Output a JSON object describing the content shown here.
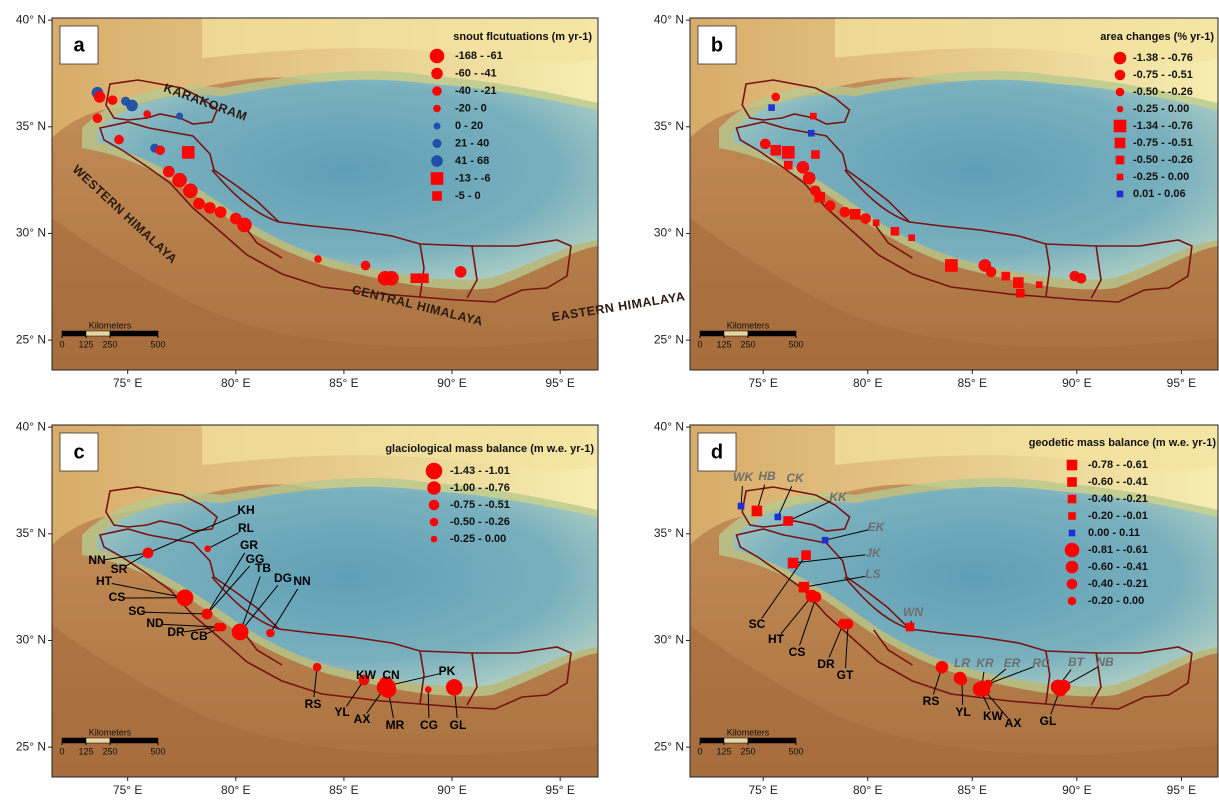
{
  "axes": {
    "xlim": [
      71.5,
      96.75
    ],
    "ylim": [
      23.6,
      40.1
    ],
    "xticks": [
      {
        "value": 75,
        "label": "75° E"
      },
      {
        "value": 80,
        "label": "80° E"
      },
      {
        "value": 85,
        "label": "85° E"
      },
      {
        "value": 90,
        "label": "90° E"
      },
      {
        "value": 95,
        "label": "95° E"
      }
    ],
    "yticks": [
      {
        "value": 25,
        "label": "25° N"
      },
      {
        "value": 30,
        "label": "30° N"
      },
      {
        "value": 35,
        "label": "35° N"
      },
      {
        "value": 40,
        "label": "40° N"
      }
    ]
  },
  "scale_bar": {
    "title": "Kilometers",
    "ticks": [
      0,
      125,
      250,
      500
    ]
  },
  "panels": [
    {
      "letter": "a",
      "legend_title": "snout flcutuations  (m yr-1)",
      "legend": [
        {
          "label": "-168 - -61",
          "shape": "circle",
          "color": "#ff0000"
        },
        {
          "label": "-60 - -41",
          "shape": "circle",
          "color": "#ff0000"
        },
        {
          "label": "-40 - -21",
          "shape": "circle",
          "color": "#ff0000"
        },
        {
          "label": "-20 - 0",
          "shape": "circle",
          "color": "#ff0000"
        },
        {
          "label": "0 - 20",
          "shape": "circle",
          "color": "#1f4fa8"
        },
        {
          "label": "21 - 40",
          "shape": "circle",
          "color": "#1f4fa8"
        },
        {
          "label": "41 - 68",
          "shape": "circle",
          "color": "#1f4fa8"
        },
        {
          "label": "-13 - -6",
          "shape": "square",
          "color": "#ff0000"
        },
        {
          "label": "-5 - 0",
          "shape": "square",
          "color": "#ff0000"
        }
      ],
      "region_labels": [
        "KARAKORAM",
        "WESTERN HIMALAYA",
        "CENTRAL HIMALAYA",
        "EASTERN HIMALAYA"
      ],
      "points": [
        [
          73.6,
          36.6,
          6
        ],
        [
          73.7,
          36.4,
          1
        ],
        [
          74.3,
          36.25,
          2
        ],
        [
          74.9,
          36.2,
          5
        ],
        [
          75.2,
          36.0,
          6
        ],
        [
          75.9,
          35.6,
          3
        ],
        [
          77.4,
          35.5,
          4
        ],
        [
          73.6,
          35.4,
          2
        ],
        [
          74.6,
          34.4,
          2
        ],
        [
          76.25,
          34.0,
          5
        ],
        [
          76.5,
          33.9,
          2
        ],
        [
          77.8,
          33.8,
          7
        ],
        [
          76.9,
          32.9,
          1
        ],
        [
          77.4,
          32.5,
          0
        ],
        [
          77.9,
          32.0,
          0
        ],
        [
          78.3,
          31.4,
          1
        ],
        [
          78.8,
          31.2,
          1
        ],
        [
          79.3,
          31.0,
          1
        ],
        [
          80.0,
          30.7,
          1
        ],
        [
          80.4,
          30.4,
          0
        ],
        [
          83.8,
          28.8,
          3
        ],
        [
          86.0,
          28.5,
          2
        ],
        [
          86.9,
          27.9,
          0
        ],
        [
          87.2,
          27.9,
          0
        ],
        [
          88.3,
          27.9,
          8
        ],
        [
          88.7,
          27.9,
          8
        ],
        [
          90.4,
          28.2,
          1
        ]
      ]
    },
    {
      "letter": "b",
      "legend_title": "area changes (% yr-1)",
      "legend": [
        {
          "label": "-1.38 - -0.76",
          "shape": "circle",
          "color": "#ff0000"
        },
        {
          "label": "-0.75 - -0.51",
          "shape": "circle",
          "color": "#ff0000"
        },
        {
          "label": "-0.50 - -0.26",
          "shape": "circle",
          "color": "#ff0000"
        },
        {
          "label": "-0.25 - 0.00",
          "shape": "circle",
          "color": "#ff0000"
        },
        {
          "label": "-1.34 - -0.76",
          "shape": "square",
          "color": "#ff0000"
        },
        {
          "label": "-0.75 - -0.51",
          "shape": "square",
          "color": "#ff0000"
        },
        {
          "label": "-0.50 - -0.26",
          "shape": "square",
          "color": "#ff0000"
        },
        {
          "label": "-0.25 - 0.00",
          "shape": "square",
          "color": "#ff0000"
        },
        {
          "label": "0.01 - 0.06",
          "shape": "square",
          "color": "#1f2fd0"
        }
      ],
      "points": [
        [
          75.6,
          36.4,
          2
        ],
        [
          75.4,
          35.9,
          8
        ],
        [
          77.4,
          35.5,
          7
        ],
        [
          77.3,
          34.7,
          8
        ],
        [
          75.1,
          34.2,
          1
        ],
        [
          75.6,
          33.9,
          5
        ],
        [
          76.2,
          33.8,
          4
        ],
        [
          77.5,
          33.7,
          6
        ],
        [
          76.2,
          33.2,
          6
        ],
        [
          76.9,
          33.1,
          0
        ],
        [
          77.2,
          32.6,
          0
        ],
        [
          77.5,
          32.0,
          1
        ],
        [
          77.7,
          31.7,
          5
        ],
        [
          78.2,
          31.3,
          1
        ],
        [
          78.9,
          31.0,
          1
        ],
        [
          79.4,
          30.9,
          5
        ],
        [
          79.9,
          30.7,
          1
        ],
        [
          80.4,
          30.5,
          7
        ],
        [
          81.3,
          30.1,
          6
        ],
        [
          82.1,
          29.8,
          7
        ],
        [
          84.0,
          28.5,
          4
        ],
        [
          85.6,
          28.5,
          0
        ],
        [
          85.9,
          28.2,
          1
        ],
        [
          86.6,
          28.0,
          6
        ],
        [
          87.2,
          27.7,
          5
        ],
        [
          87.3,
          27.2,
          6
        ],
        [
          88.2,
          27.6,
          7
        ],
        [
          89.9,
          28.0,
          1
        ],
        [
          90.2,
          27.9,
          1
        ]
      ]
    },
    {
      "letter": "c",
      "legend_title": "glaciological mass balance (m w.e. yr-1)",
      "legend": [
        {
          "label": "-1.43 - -1.01",
          "shape": "circle",
          "color": "#ff0000"
        },
        {
          "label": "-1.00 - -0.76",
          "shape": "circle",
          "color": "#ff0000"
        },
        {
          "label": "-0.75 - -0.51",
          "shape": "circle",
          "color": "#ff0000"
        },
        {
          "label": "-0.50 - -0.26",
          "shape": "circle",
          "color": "#ff0000"
        },
        {
          "label": "-0.25 - 0.00",
          "shape": "circle",
          "color": "#ff0000"
        }
      ],
      "sites": [
        {
          "label": "KH",
          "lon": 75.94,
          "lat": 34.1,
          "class": 2
        },
        {
          "label": "NN",
          "lon": 75.94,
          "lat": 34.1,
          "class": 2
        },
        {
          "label": "SR",
          "lon": 75.94,
          "lat": 34.1,
          "class": 2
        },
        {
          "label": "RL",
          "lon": 78.7,
          "lat": 34.3,
          "class": 4
        },
        {
          "label": "HT",
          "lon": 77.65,
          "lat": 32.0,
          "class": 0
        },
        {
          "label": "CS",
          "lon": 77.65,
          "lat": 32.0,
          "class": 0
        },
        {
          "label": "SG",
          "lon": 78.67,
          "lat": 31.24,
          "class": 2
        },
        {
          "label": "ND",
          "lon": 79.18,
          "lat": 30.63,
          "class": 3
        },
        {
          "label": "DR",
          "lon": 79.18,
          "lat": 30.63,
          "class": 3
        },
        {
          "label": "CB",
          "lon": 79.36,
          "lat": 30.63,
          "class": 3
        },
        {
          "label": "GR",
          "lon": 78.67,
          "lat": 31.24,
          "class": 2
        },
        {
          "label": "GG",
          "lon": 78.67,
          "lat": 31.24,
          "class": 2
        },
        {
          "label": "TB",
          "lon": 80.2,
          "lat": 30.4,
          "class": 0
        },
        {
          "label": "DG",
          "lon": 80.2,
          "lat": 30.4,
          "class": 0
        },
        {
          "label": "NN",
          "lon": 81.6,
          "lat": 30.35,
          "class": 3
        },
        {
          "label": "RS",
          "lon": 83.76,
          "lat": 28.75,
          "class": 3
        },
        {
          "label": "KW",
          "lon": 85.93,
          "lat": 28.15,
          "class": 2
        },
        {
          "label": "YL",
          "lon": 85.93,
          "lat": 28.15,
          "class": 2
        },
        {
          "label": "CN",
          "lon": 86.95,
          "lat": 28.0,
          "class": 1
        },
        {
          "label": "AX",
          "lon": 86.9,
          "lat": 27.8,
          "class": 0
        },
        {
          "label": "MR",
          "lon": 87.04,
          "lat": 27.7,
          "class": 0
        },
        {
          "label": "PK",
          "lon": 87.13,
          "lat": 27.9,
          "class": 2
        },
        {
          "label": "CG",
          "lon": 88.9,
          "lat": 27.7,
          "class": 4
        },
        {
          "label": "GL",
          "lon": 90.1,
          "lat": 27.8,
          "class": 0
        }
      ]
    },
    {
      "letter": "d",
      "legend_title": "geodetic mass balance (m w.e. yr-1)",
      "legend": [
        {
          "label": "-0.78 - -0.61",
          "shape": "square",
          "color": "#ff0000"
        },
        {
          "label": "-0.60 - -0.41",
          "shape": "square",
          "color": "#ff0000"
        },
        {
          "label": "-0.40 - -0.21",
          "shape": "square",
          "color": "#ff0000"
        },
        {
          "label": "-0.20 - -0.01",
          "shape": "square",
          "color": "#ff0000"
        },
        {
          "label": "0.00 - 0.11",
          "shape": "square",
          "color": "#1f2fd0"
        },
        {
          "label": "-0.81 - -0.61",
          "shape": "circle",
          "color": "#ff0000"
        },
        {
          "label": "-0.60 - -0.41",
          "shape": "circle",
          "color": "#ff0000"
        },
        {
          "label": "-0.40 - -0.21",
          "shape": "circle",
          "color": "#ff0000"
        },
        {
          "label": "-0.20 - 0.00",
          "shape": "circle",
          "color": "#ff0000"
        }
      ],
      "sites": [
        {
          "label": "WK",
          "lon": 73.94,
          "lat": 36.3,
          "class": 4,
          "label_color": "#6e6e6e"
        },
        {
          "label": "HB",
          "lon": 74.7,
          "lat": 36.07,
          "class": 0,
          "label_color": "#6e6e6e"
        },
        {
          "label": "CK",
          "lon": 75.7,
          "lat": 35.79,
          "class": 4,
          "label_color": "#6e6e6e"
        },
        {
          "label": "KK",
          "lon": 76.19,
          "lat": 35.6,
          "class": 1,
          "label_color": "#6e6e6e"
        },
        {
          "label": "EK",
          "lon": 77.96,
          "lat": 34.7,
          "class": 4,
          "label_color": "#6e6e6e"
        },
        {
          "label": "JK",
          "lon": 76.43,
          "lat": 33.63,
          "class": 0,
          "label_color": "#6e6e6e"
        },
        {
          "label": "LS",
          "lon": 76.95,
          "lat": 32.5,
          "class": 0,
          "label_color": "#6e6e6e"
        },
        {
          "label": "SC",
          "lon": 77.05,
          "lat": 34.0,
          "class": 1,
          "label_color": "#000000"
        },
        {
          "label": "HT",
          "lon": 77.33,
          "lat": 32.08,
          "class": 6,
          "label_color": "#000000"
        },
        {
          "label": "CS",
          "lon": 77.53,
          "lat": 32.04,
          "class": 7,
          "label_color": "#000000"
        },
        {
          "label": "DR",
          "lon": 78.82,
          "lat": 30.77,
          "class": 7,
          "label_color": "#000000"
        },
        {
          "label": "GT",
          "lon": 79.06,
          "lat": 30.77,
          "class": 7,
          "label_color": "#000000"
        },
        {
          "label": "WN",
          "lon": 82.02,
          "lat": 30.63,
          "class": 2,
          "label_color": "#6e6e6e"
        },
        {
          "label": "RS",
          "lon": 83.55,
          "lat": 28.75,
          "class": 6,
          "label_color": "#000000"
        },
        {
          "label": "LR",
          "lon": 84.41,
          "lat": 28.24,
          "class": 6,
          "label_color": "#6e6e6e"
        },
        {
          "label": "YL",
          "lon": 84.5,
          "lat": 28.14,
          "class": 7,
          "label_color": "#000000"
        },
        {
          "label": "KW",
          "lon": 85.37,
          "lat": 27.72,
          "class": 5,
          "label_color": "#000000"
        },
        {
          "label": "AX",
          "lon": 85.56,
          "lat": 27.68,
          "class": 6,
          "label_color": "#000000"
        },
        {
          "label": "KR",
          "lon": 85.46,
          "lat": 27.86,
          "class": 7,
          "label_color": "#6e6e6e"
        },
        {
          "label": "ER",
          "lon": 85.6,
          "lat": 27.86,
          "class": 7,
          "label_color": "#6e6e6e"
        },
        {
          "label": "RC",
          "lon": 85.75,
          "lat": 27.96,
          "class": 8,
          "label_color": "#6e6e6e"
        },
        {
          "label": "BT",
          "lon": 89.1,
          "lat": 27.82,
          "class": 5,
          "label_color": "#6e6e6e"
        },
        {
          "label": "NB",
          "lon": 89.39,
          "lat": 27.86,
          "class": 6,
          "label_color": "#6e6e6e"
        },
        {
          "label": "GL",
          "lon": 89.2,
          "lat": 27.72,
          "class": 5,
          "label_color": "#000000"
        }
      ]
    }
  ]
}
